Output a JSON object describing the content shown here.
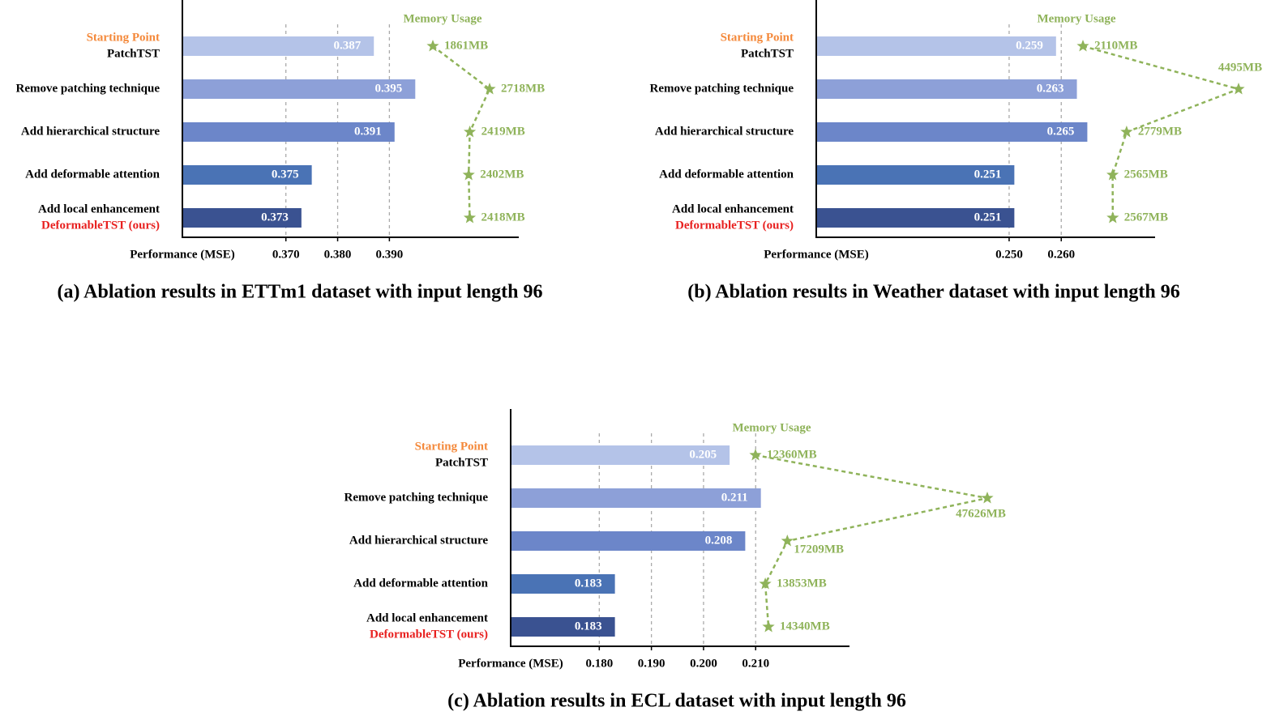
{
  "chart_data": [
    {
      "type": "bar",
      "title": "(a) Ablation results in ETTm1 dataset with input length 96",
      "xlabel": "Performance (MSE)",
      "categories": [
        "PatchTST",
        "Remove patching technique",
        "Add hierarchical structure",
        "Add deformable attention",
        "Add local enhancement"
      ],
      "start_label": "Starting Point",
      "start_color": "#f4893b",
      "ours_label": "DeformableTST (ours)",
      "ours_color": "#e8201f",
      "values": [
        0.387,
        0.395,
        0.391,
        0.375,
        0.373
      ],
      "colors": [
        "#b4c3e8",
        "#8da0d8",
        "#6c86c9",
        "#4a73b5",
        "#3a5291"
      ],
      "xlim": [
        0.35,
        0.415
      ],
      "xticks": [
        {
          "value": 0.37,
          "label": "0.370"
        },
        {
          "value": 0.38,
          "label": "0.380"
        },
        {
          "value": 0.39,
          "label": "0.390"
        }
      ],
      "grid": true,
      "memory": {
        "name": "Memory Usage",
        "color": "#8fb35a",
        "values": [
          1861,
          2718,
          2419,
          2402,
          2418
        ],
        "value_labels": [
          "1861MB",
          "2718MB",
          "2419MB",
          "2402MB",
          "2418MB"
        ]
      }
    },
    {
      "type": "bar",
      "title": "(b) Ablation results in Weather dataset with input length 96",
      "xlabel": "Performance (MSE)",
      "categories": [
        "PatchTST",
        "Remove patching technique",
        "Add hierarchical structure",
        "Add deformable attention",
        "Add local enhancement"
      ],
      "start_label": "Starting Point",
      "start_color": "#f4893b",
      "ours_label": "DeformableTST (ours)",
      "ours_color": "#e8201f",
      "values": [
        0.259,
        0.263,
        0.265,
        0.251,
        0.251
      ],
      "colors": [
        "#b4c3e8",
        "#8da0d8",
        "#6c86c9",
        "#4a73b5",
        "#3a5291"
      ],
      "xlim": [
        0.213,
        0.278
      ],
      "xticks": [
        {
          "value": 0.25,
          "label": "0.250"
        },
        {
          "value": 0.26,
          "label": "0.260"
        }
      ],
      "grid": true,
      "memory": {
        "name": "Memory Usage",
        "color": "#8fb35a",
        "values": [
          2110,
          4495,
          2779,
          2565,
          2567
        ],
        "value_labels": [
          "2110MB",
          "4495MB",
          "2779MB",
          "2565MB",
          "2567MB"
        ]
      }
    },
    {
      "type": "bar",
      "title": "(c) Ablation results in ECL dataset with input length 96",
      "xlabel": "Performance (MSE)",
      "categories": [
        "PatchTST",
        "Remove patching technique",
        "Add hierarchical structure",
        "Add deformable attention",
        "Add local enhancement"
      ],
      "start_label": "Starting Point",
      "start_color": "#f4893b",
      "ours_label": "DeformableTST (ours)",
      "ours_color": "#e8201f",
      "values": [
        0.205,
        0.211,
        0.208,
        0.183,
        0.183
      ],
      "colors": [
        "#b4c3e8",
        "#8da0d8",
        "#6c86c9",
        "#4a73b5",
        "#3a5291"
      ],
      "xlim": [
        0.163,
        0.228
      ],
      "xticks": [
        {
          "value": 0.18,
          "label": "0.180"
        },
        {
          "value": 0.19,
          "label": "0.190"
        },
        {
          "value": 0.2,
          "label": "0.200"
        },
        {
          "value": 0.21,
          "label": "0.210"
        }
      ],
      "grid": true,
      "memory": {
        "name": "Memory Usage",
        "color": "#8fb35a",
        "values": [
          12360,
          47626,
          17209,
          13853,
          14340
        ],
        "value_labels": [
          "12360MB",
          "47626MB",
          "17209MB",
          "13853MB",
          "14340MB"
        ]
      }
    }
  ]
}
